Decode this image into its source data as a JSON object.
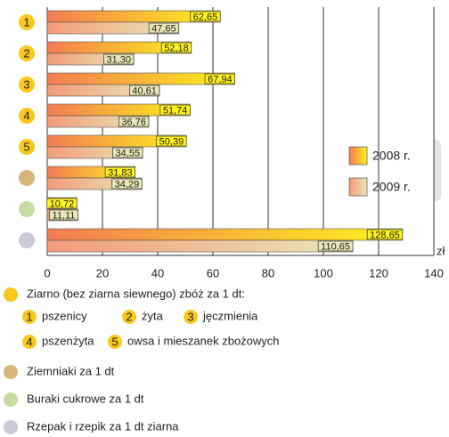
{
  "chart_data": {
    "type": "hbar",
    "categories": [
      "1",
      "2",
      "3",
      "4",
      "5",
      null,
      null,
      null
    ],
    "marker_colors": [
      "#f8c81c",
      "#f8c81c",
      "#f8c81c",
      "#f8c81c",
      "#f8c81c",
      "#d6b67c",
      "#c6dca2",
      "#cdc8d9"
    ],
    "series": [
      {
        "name": "2008 r.",
        "gradient": [
          "#f37b52",
          "#fff21c"
        ],
        "label_fill": "#fff21c",
        "values": [
          62.65,
          52.18,
          67.94,
          51.74,
          50.39,
          31.83,
          10.72,
          128.65
        ],
        "value_labels": [
          "62,65",
          "52,18",
          "67,94",
          "51,74",
          "50,39",
          "31,83",
          "10,72",
          "128,65"
        ]
      },
      {
        "name": "2009 r.",
        "gradient": [
          "#f49a7a",
          "#e9e7b6"
        ],
        "label_fill": "#e9e7b6",
        "values": [
          47.65,
          31.3,
          40.61,
          36.76,
          34.55,
          34.29,
          11.11,
          110.65
        ],
        "value_labels": [
          "47,65",
          "31,30",
          "40,61",
          "36,76",
          "34,55",
          "34,29",
          "11,11",
          "110,65"
        ]
      }
    ],
    "xlim": [
      0,
      140
    ],
    "xticks": [
      0,
      20,
      40,
      60,
      80,
      100,
      120,
      140
    ],
    "x_label": "zł",
    "grid": true,
    "key": {
      "title": "Ziarno (bez ziarna siewnego) zbóż za 1 dt:",
      "grain": [
        "pszenicy",
        "żyta",
        "jęczmienia",
        "pszenżyta",
        "owsa i mieszanek zbożowych"
      ],
      "others": [
        "Ziemniaki za 1 dt",
        "Buraki cukrowe za 1 dt",
        "Rzepak i rzepik za 1 dt ziarna"
      ]
    }
  }
}
